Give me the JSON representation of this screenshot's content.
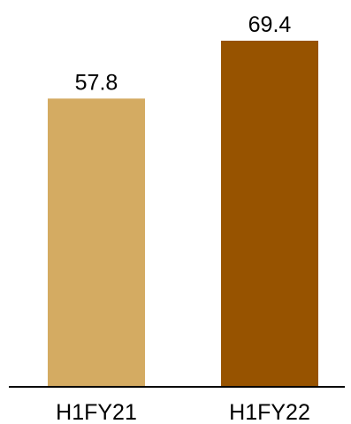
{
  "chart_data": {
    "type": "bar",
    "categories": [
      "H1FY21",
      "H1FY22"
    ],
    "values": [
      57.8,
      69.4
    ],
    "value_labels": [
      "57.8",
      "69.4"
    ],
    "colors": [
      "#D4AB62",
      "#975300"
    ],
    "title": "",
    "xlabel": "",
    "ylabel": "",
    "ylim": [
      0,
      69.4
    ],
    "grid": false,
    "legend": "none"
  }
}
